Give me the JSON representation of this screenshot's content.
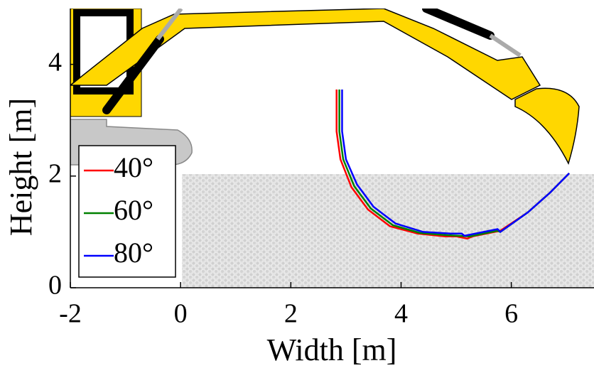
{
  "chart_data": {
    "type": "line",
    "xlabel": "Width  [m]",
    "ylabel": "Height [m]",
    "xlim": [
      -2,
      7.5
    ],
    "ylim": [
      0,
      5
    ],
    "xticks": [
      -2,
      0,
      2,
      4,
      6
    ],
    "yticks": [
      0,
      2,
      4
    ],
    "legend": "upper left",
    "series": [
      {
        "name": "40°",
        "color": "#ff0000",
        "x": [
          2.83,
          2.83,
          2.9,
          3.1,
          3.4,
          3.8,
          4.3,
          4.8,
          5.0,
          5.2,
          5.3,
          5.8,
          6.3,
          6.7,
          7.05
        ],
        "values": [
          3.55,
          2.8,
          2.3,
          1.8,
          1.4,
          1.1,
          0.97,
          0.92,
          0.92,
          0.88,
          0.92,
          1.02,
          1.35,
          1.7,
          2.05
        ]
      },
      {
        "name": "60°",
        "color": "#008000",
        "x": [
          2.88,
          2.88,
          2.95,
          3.15,
          3.45,
          3.85,
          4.35,
          4.85,
          5.25,
          5.75,
          5.8,
          6.3,
          6.7,
          7.05
        ],
        "values": [
          3.55,
          2.8,
          2.3,
          1.82,
          1.42,
          1.12,
          0.98,
          0.94,
          0.92,
          1.02,
          1.0,
          1.35,
          1.7,
          2.05
        ]
      },
      {
        "name": "80°",
        "color": "#0000ff",
        "x": [
          2.93,
          2.93,
          3.0,
          3.2,
          3.5,
          3.9,
          4.4,
          4.9,
          5.1,
          5.15,
          5.75,
          5.8,
          6.3,
          6.7,
          7.05
        ],
        "values": [
          3.55,
          2.8,
          2.3,
          1.85,
          1.45,
          1.15,
          1.0,
          0.97,
          0.97,
          0.93,
          1.05,
          1.0,
          1.35,
          1.7,
          2.05
        ]
      }
    ]
  }
}
